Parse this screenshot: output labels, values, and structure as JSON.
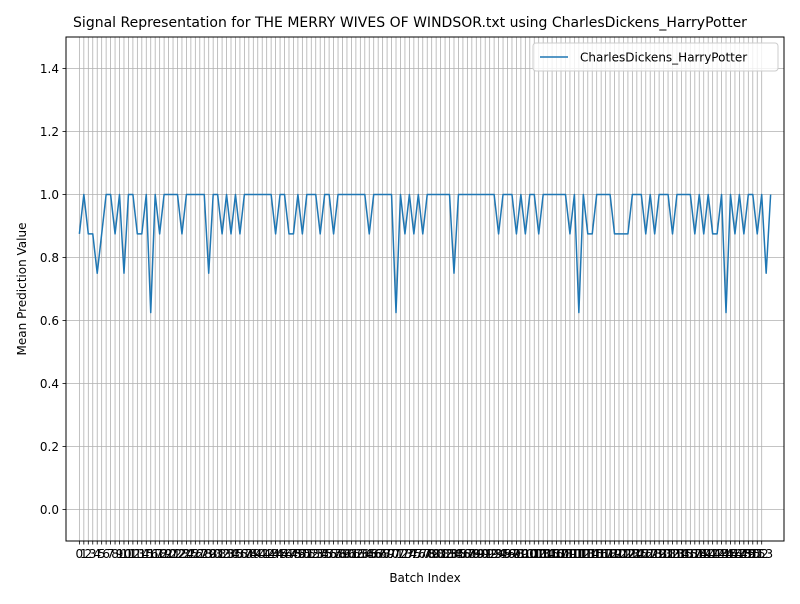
{
  "chart_data": {
    "type": "line",
    "title": "Signal Representation for THE MERRY WIVES OF WINDSOR.txt using CharlesDickens_HarryPotter",
    "xlabel": "Batch Index",
    "ylabel": "Mean Prediction Value",
    "xlim": [
      -3,
      158
    ],
    "ylim": [
      -0.1,
      1.5
    ],
    "yticks": [
      0.0,
      0.2,
      0.4,
      0.6,
      0.8,
      1.0,
      1.2,
      1.4
    ],
    "ytick_labels": [
      "0.0",
      "0.2",
      "0.4",
      "0.6",
      "0.8",
      "1.0",
      "1.2",
      "1.4"
    ],
    "xticks_from": 0,
    "xticks_to": 153,
    "grid": true,
    "legend": {
      "placement": "top-right"
    },
    "colors": {
      "series": "#1f77b4",
      "grid": "#b0b0b0"
    },
    "series": [
      {
        "name": "CharlesDickens_HarryPotter",
        "x_start": 0,
        "values": [
          0.875,
          1.0,
          0.875,
          0.875,
          0.75,
          0.875,
          1.0,
          1.0,
          0.875,
          1.0,
          0.75,
          1.0,
          1.0,
          0.875,
          0.875,
          1.0,
          0.625,
          1.0,
          0.875,
          1.0,
          1.0,
          1.0,
          1.0,
          0.875,
          1.0,
          1.0,
          1.0,
          1.0,
          1.0,
          0.75,
          1.0,
          1.0,
          0.875,
          1.0,
          0.875,
          1.0,
          0.875,
          1.0,
          1.0,
          1.0,
          1.0,
          1.0,
          1.0,
          1.0,
          0.875,
          1.0,
          1.0,
          0.875,
          0.875,
          1.0,
          0.875,
          1.0,
          1.0,
          1.0,
          0.875,
          1.0,
          1.0,
          0.875,
          1.0,
          1.0,
          1.0,
          1.0,
          1.0,
          1.0,
          1.0,
          0.875,
          1.0,
          1.0,
          1.0,
          1.0,
          1.0,
          0.625,
          1.0,
          0.875,
          1.0,
          0.875,
          1.0,
          0.875,
          1.0,
          1.0,
          1.0,
          1.0,
          1.0,
          1.0,
          0.75,
          1.0,
          1.0,
          1.0,
          1.0,
          1.0,
          1.0,
          1.0,
          1.0,
          1.0,
          0.875,
          1.0,
          1.0,
          1.0,
          0.875,
          1.0,
          0.875,
          1.0,
          1.0,
          0.875,
          1.0,
          1.0,
          1.0,
          1.0,
          1.0,
          1.0,
          0.875,
          1.0,
          0.625,
          1.0,
          0.875,
          0.875,
          1.0,
          1.0,
          1.0,
          1.0,
          0.875,
          0.875,
          0.875,
          0.875,
          1.0,
          1.0,
          1.0,
          0.875,
          1.0,
          0.875,
          1.0,
          1.0,
          1.0,
          0.875,
          1.0,
          1.0,
          1.0,
          1.0,
          0.875,
          1.0,
          0.875,
          1.0,
          0.875,
          0.875,
          1.0,
          0.625,
          1.0,
          0.875,
          1.0,
          0.875,
          1.0,
          1.0,
          0.875,
          1.0,
          0.75,
          1.0
        ]
      }
    ]
  }
}
